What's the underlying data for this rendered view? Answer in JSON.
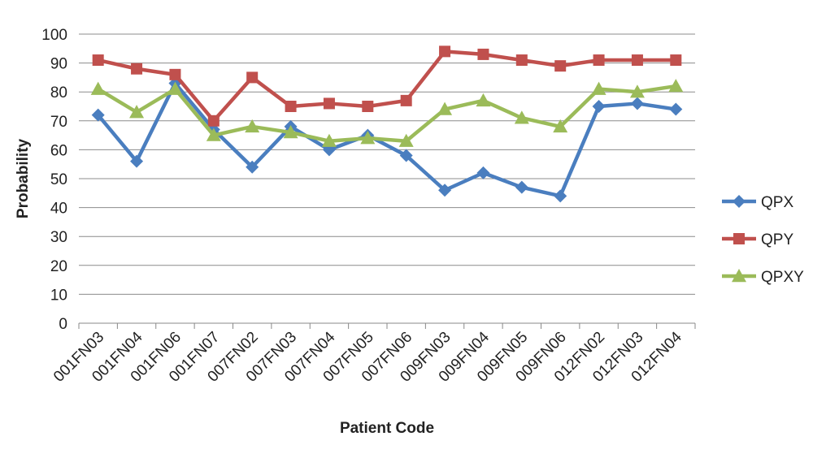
{
  "chart_data": {
    "type": "line",
    "title": "",
    "xlabel": "Patient Code",
    "ylabel": "Probability",
    "ylim": [
      0,
      100
    ],
    "yticks": [
      0,
      10,
      20,
      30,
      40,
      50,
      60,
      70,
      80,
      90,
      100
    ],
    "grid": "horizontal",
    "legend_position": "right",
    "categories": [
      "001FN03",
      "001FN04",
      "001FN06",
      "001FN07",
      "007FN02",
      "007FN03",
      "007FN04",
      "007FN05",
      "007FN06",
      "009FN03",
      "009FN04",
      "009FN05",
      "009FN06",
      "012FN02",
      "012FN03",
      "012FN04"
    ],
    "series": [
      {
        "name": "QPX",
        "color": "#4a7ebf",
        "marker": "diamond",
        "values": [
          72,
          56,
          83,
          67,
          54,
          68,
          60,
          65,
          58,
          46,
          52,
          47,
          44,
          75,
          76,
          74
        ]
      },
      {
        "name": "QPY",
        "color": "#c0504d",
        "marker": "square",
        "values": [
          91,
          88,
          86,
          70,
          85,
          75,
          76,
          75,
          77,
          94,
          93,
          91,
          89,
          91,
          91,
          91
        ]
      },
      {
        "name": "QPXY",
        "color": "#9bbb59",
        "marker": "triangle",
        "values": [
          81,
          73,
          81,
          65,
          68,
          66,
          63,
          64,
          63,
          74,
          77,
          71,
          68,
          81,
          80,
          82
        ]
      }
    ]
  }
}
